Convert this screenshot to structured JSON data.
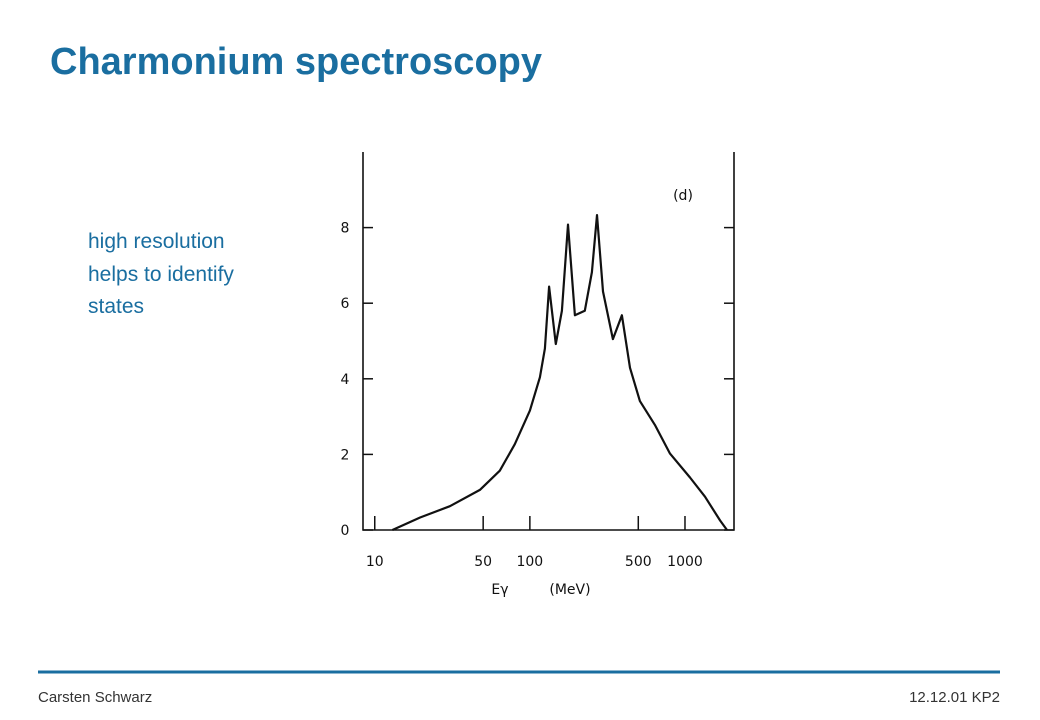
{
  "title": "Charmonium spectroscopy",
  "body": [
    "high resolution",
    "helps to identify",
    "states"
  ],
  "footer": {
    "author": "Carsten Schwarz",
    "info": "12.12.01 KP2"
  },
  "chart_data": {
    "type": "line",
    "log_x": true,
    "xlabel": "Eγ",
    "xunit": "(MeV)",
    "annotation": "(d)",
    "x": [
      13,
      19.6,
      30.5,
      47.6,
      64,
      80,
      100,
      116,
      125,
      133,
      147,
      161,
      176,
      195,
      226,
      251,
      271,
      296,
      343,
      392,
      442,
      512,
      640,
      800,
      1077,
      1345,
      1683,
      1867
    ],
    "series": [
      {
        "name": "spectrum",
        "color": "#111111",
        "values": [
          0,
          0.33,
          0.63,
          1.06,
          1.57,
          2.27,
          3.16,
          4.04,
          4.8,
          6.44,
          4.92,
          5.8,
          8.08,
          5.68,
          5.8,
          6.82,
          8.33,
          6.31,
          5.05,
          5.68,
          4.29,
          3.41,
          2.78,
          2.02,
          1.39,
          0.88,
          0.25,
          0
        ]
      }
    ],
    "xlim": [
      8.4,
      2070
    ],
    "xticks": [
      10,
      50,
      100,
      500,
      1000
    ],
    "ylim": [
      0,
      10
    ],
    "yticks": [
      0,
      2,
      4,
      6,
      8
    ]
  }
}
